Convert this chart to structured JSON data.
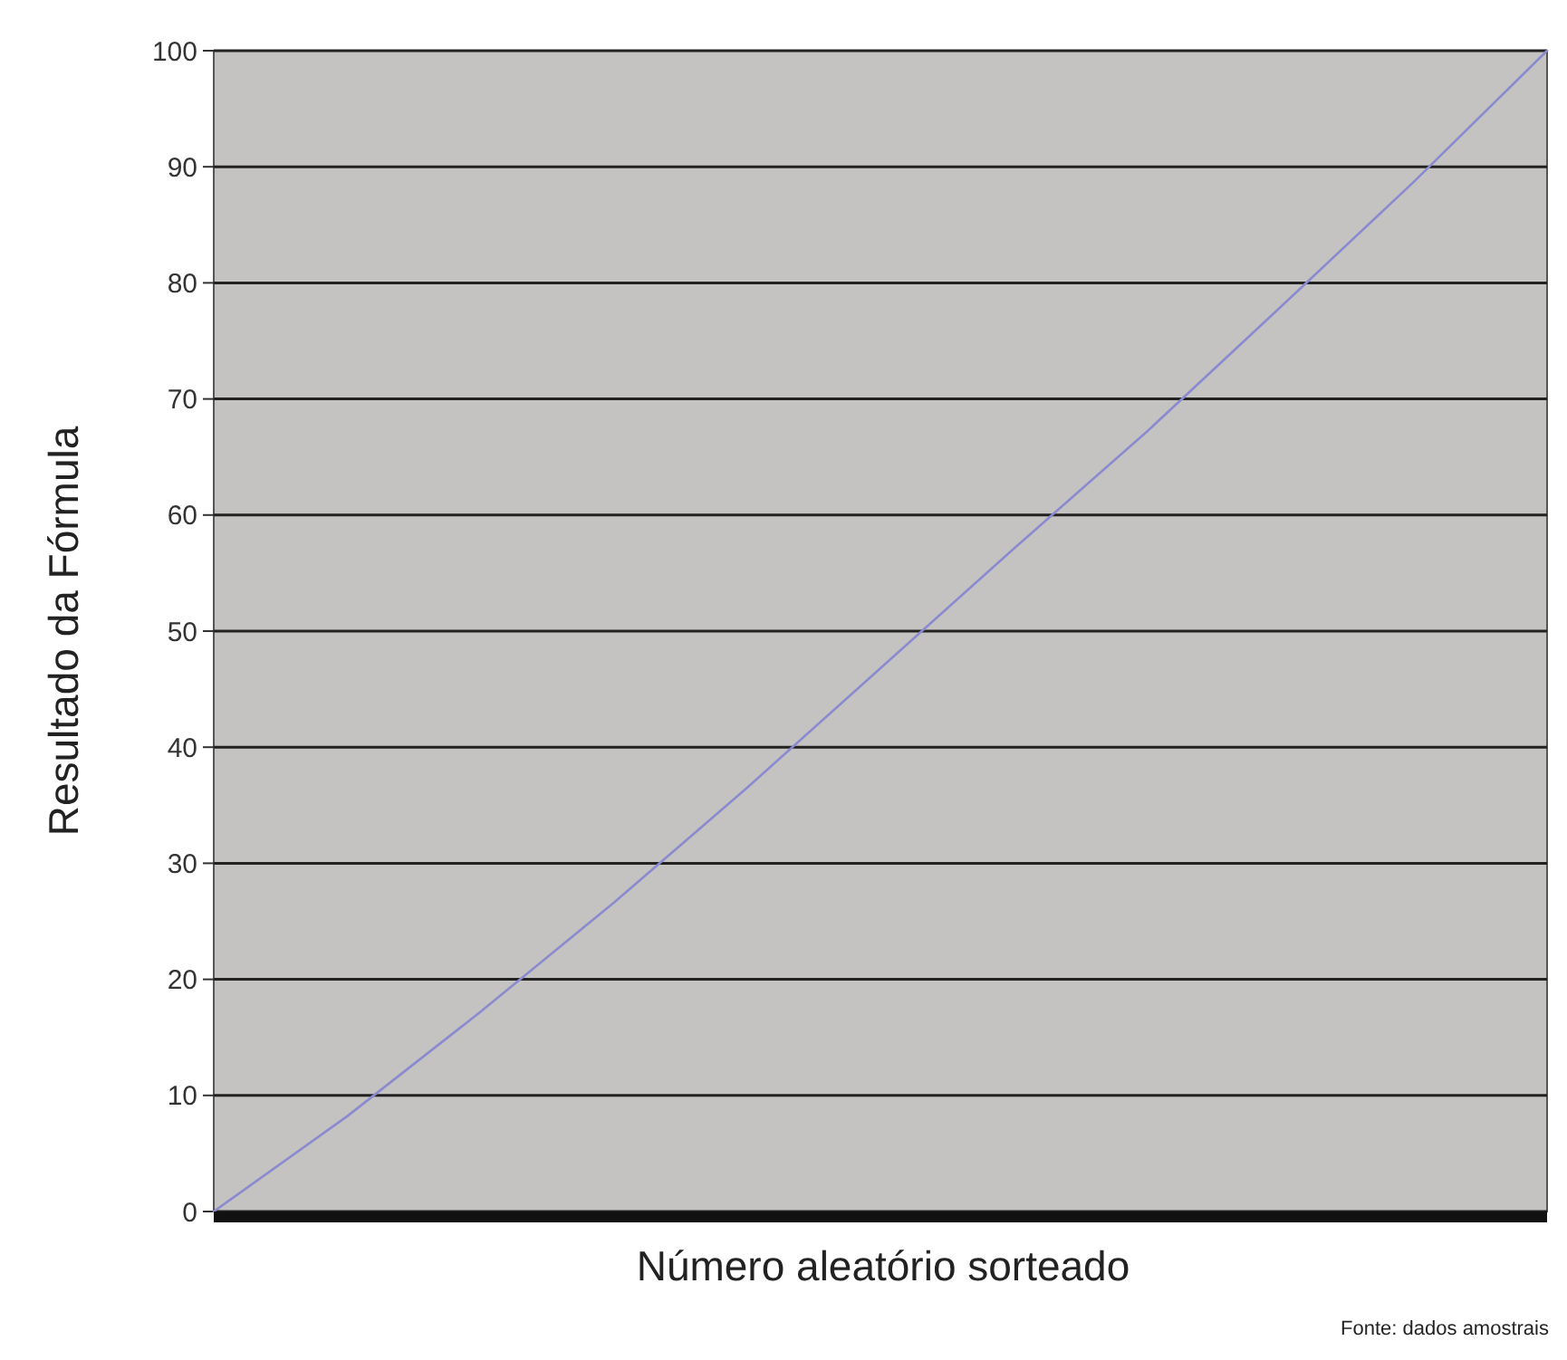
{
  "chart_data": {
    "type": "line",
    "xlabel": "Número aleatório sorteado",
    "ylabel": "Resultado da Fórmula",
    "annotations": [
      "Fonte: dados amostrais"
    ],
    "categories": [
      null,
      null,
      null,
      null,
      null,
      null,
      null,
      null,
      null,
      null,
      null
    ],
    "series": [
      {
        "color": "#8a8ad0",
        "values": [
          0,
          8.2,
          17.2,
          26.6,
          36.5,
          46.8,
          57.1,
          67.2,
          77.9,
          88.7,
          100
        ]
      }
    ],
    "ylim": [
      0,
      100
    ],
    "yticks": [
      0,
      10,
      20,
      30,
      40,
      50,
      60,
      70,
      80,
      90,
      100
    ],
    "grid": "y",
    "marker": "none",
    "line_style": "solid"
  }
}
